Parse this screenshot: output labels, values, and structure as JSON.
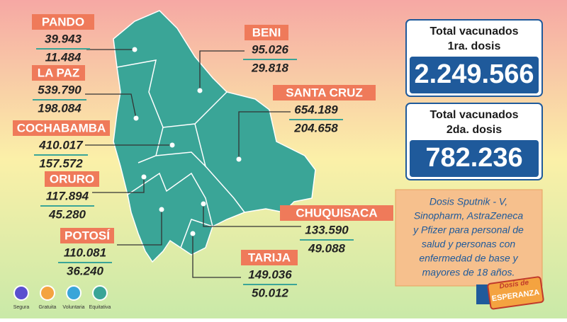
{
  "departments": [
    {
      "name": "PANDO",
      "dose1": "39.943",
      "dose2": "11.484"
    },
    {
      "name": "LA PAZ",
      "dose1": "539.790",
      "dose2": "198.084"
    },
    {
      "name": "COCHABAMBA",
      "dose1": "410.017",
      "dose2": "157.572"
    },
    {
      "name": "ORURO",
      "dose1": "117.894",
      "dose2": "45.280"
    },
    {
      "name": "POTOSÍ",
      "dose1": "110.081",
      "dose2": "36.240"
    },
    {
      "name": "BENI",
      "dose1": "95.026",
      "dose2": "29.818"
    },
    {
      "name": "SANTA CRUZ",
      "dose1": "654.189",
      "dose2": "204.658"
    },
    {
      "name": "CHUQUISACA",
      "dose1": "133.590",
      "dose2": "49.088"
    },
    {
      "name": "TARIJA",
      "dose1": "149.036",
      "dose2": "50.012"
    }
  ],
  "totals": [
    {
      "label_line1": "Total vacunados",
      "label_line2": "1ra. dosis",
      "value": "2.249.566"
    },
    {
      "label_line1": "Total vacunados",
      "label_line2": "2da. dosis",
      "value": "782.236"
    }
  ],
  "note": [
    "Dosis Sputnik - V,",
    "Sinopharm, AstraZeneca",
    "y Pfizer para personal de",
    "salud y personas con",
    "enfermedad de base y",
    "mayores de 18 años."
  ],
  "icons": [
    "Segura",
    "Gratuita",
    "Voluntaria",
    "Equitativa"
  ],
  "logo": {
    "line1": "Dosis de",
    "line2": "ESPERANZA"
  }
}
